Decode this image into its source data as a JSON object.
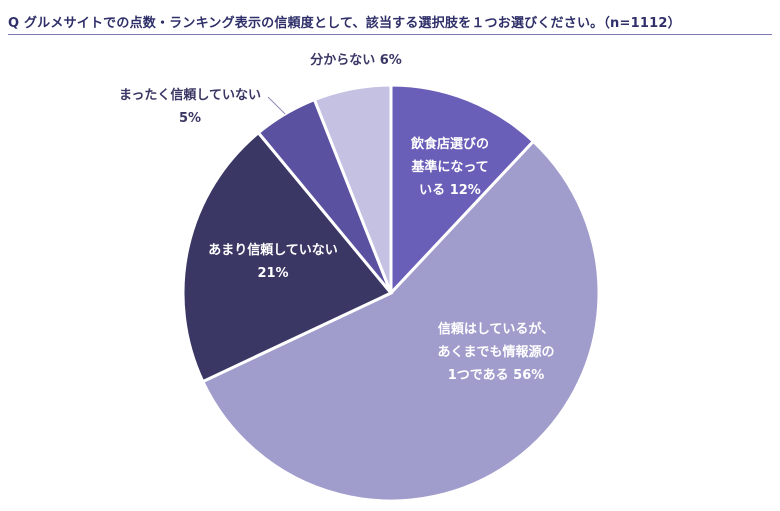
{
  "title": "Q グルメサイトでの点数・ランキング表示の信頼度として、該当する選択肢を１つお選びください。（n=1112）",
  "chart_data": {
    "type": "pie",
    "title": "Q グルメサイトでの点数・ランキング表示の信頼度として、該当する選択肢を１つお選びください。（n=1112）",
    "n": 1112,
    "start_angle_deg": 0,
    "direction": "clockwise",
    "slices": [
      {
        "label": "飲食店選びの基準になっている",
        "value": 12,
        "color": "#6a5fb8",
        "label_lines": [
          "飲食店選びの",
          "基準になって",
          "いる 12%"
        ],
        "label_color": "#ffffff"
      },
      {
        "label": "信頼はしているが、あくまでも情報源の1つである",
        "value": 56,
        "color": "#a09ccc",
        "label_lines": [
          "信頼はしているが、",
          "あくまでも情報源の",
          "1つである 56%"
        ],
        "label_color": "#ffffff"
      },
      {
        "label": "あまり信頼していない",
        "value": 21,
        "color": "#3b3765",
        "label_lines": [
          "あまり信頼していない",
          "21%"
        ],
        "label_color": "#ffffff"
      },
      {
        "label": "まったく信頼していない",
        "value": 5,
        "color": "#5a52a0",
        "label_lines": [
          "まったく信頼していない",
          "5%"
        ],
        "label_color": "#3b3765"
      },
      {
        "label": "分からない",
        "value": 6,
        "color": "#c4c1e3",
        "label_lines": [
          "分からない 6%"
        ],
        "label_color": "#3b3765"
      }
    ]
  }
}
